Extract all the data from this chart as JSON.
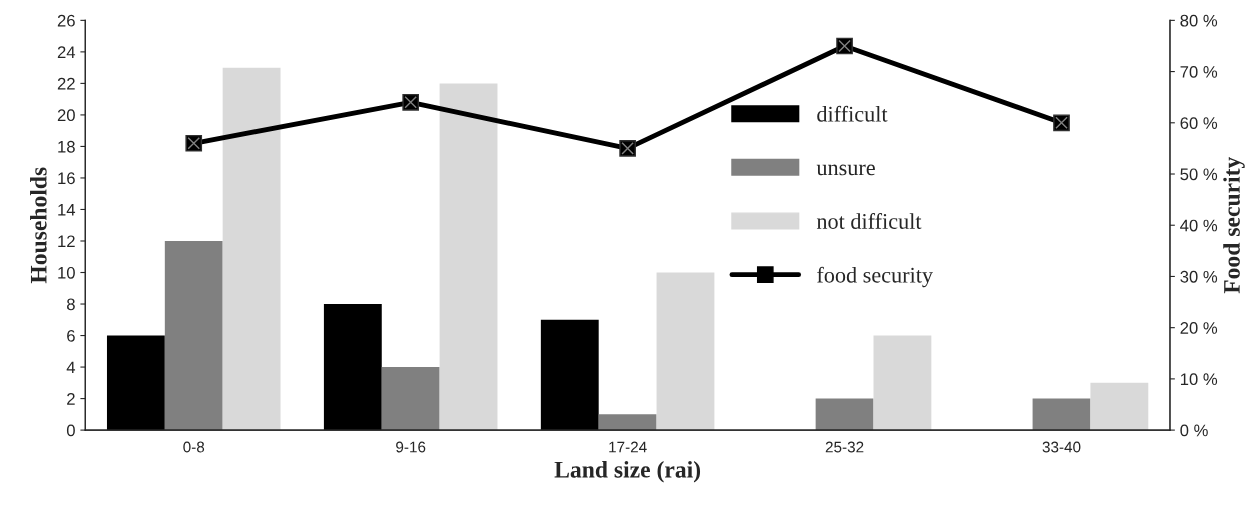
{
  "chart_data": {
    "type": "bar",
    "xlabel": "Land size (rai)",
    "ylabel": "Households",
    "y2label": "Food security",
    "categories": [
      "0-8",
      "9-16",
      "17-24",
      "25-32",
      "33-40"
    ],
    "series": [
      {
        "name": "difficult",
        "color": "#000000",
        "values": [
          6,
          8,
          7,
          0,
          0
        ]
      },
      {
        "name": "unsure",
        "color": "#808080",
        "values": [
          12,
          4,
          1,
          2,
          2
        ]
      },
      {
        "name": "not difficult",
        "color": "#d9d9d9",
        "values": [
          23,
          22,
          10,
          6,
          3
        ]
      },
      {
        "name": "food security",
        "type": "line",
        "axis": "y2",
        "color": "#000000",
        "marker": "square",
        "line_style": "solid",
        "values": [
          56,
          64,
          55,
          75,
          60
        ]
      }
    ],
    "ylim": [
      0,
      26
    ],
    "yticks": [
      0,
      2,
      4,
      6,
      8,
      10,
      12,
      14,
      16,
      18,
      20,
      22,
      24,
      26
    ],
    "y2lim": [
      0,
      80
    ],
    "y2ticks": [
      {
        "value": 0,
        "label": "0 %"
      },
      {
        "value": 10,
        "label": "10 %"
      },
      {
        "value": 20,
        "label": "20 %"
      },
      {
        "value": 30,
        "label": "30 %"
      },
      {
        "value": 40,
        "label": "40 %"
      },
      {
        "value": 50,
        "label": "50 %"
      },
      {
        "value": 60,
        "label": "60 %"
      },
      {
        "value": 70,
        "label": "70 %"
      },
      {
        "value": 80,
        "label": "80 %"
      }
    ],
    "grid": false,
    "legend": "right"
  }
}
